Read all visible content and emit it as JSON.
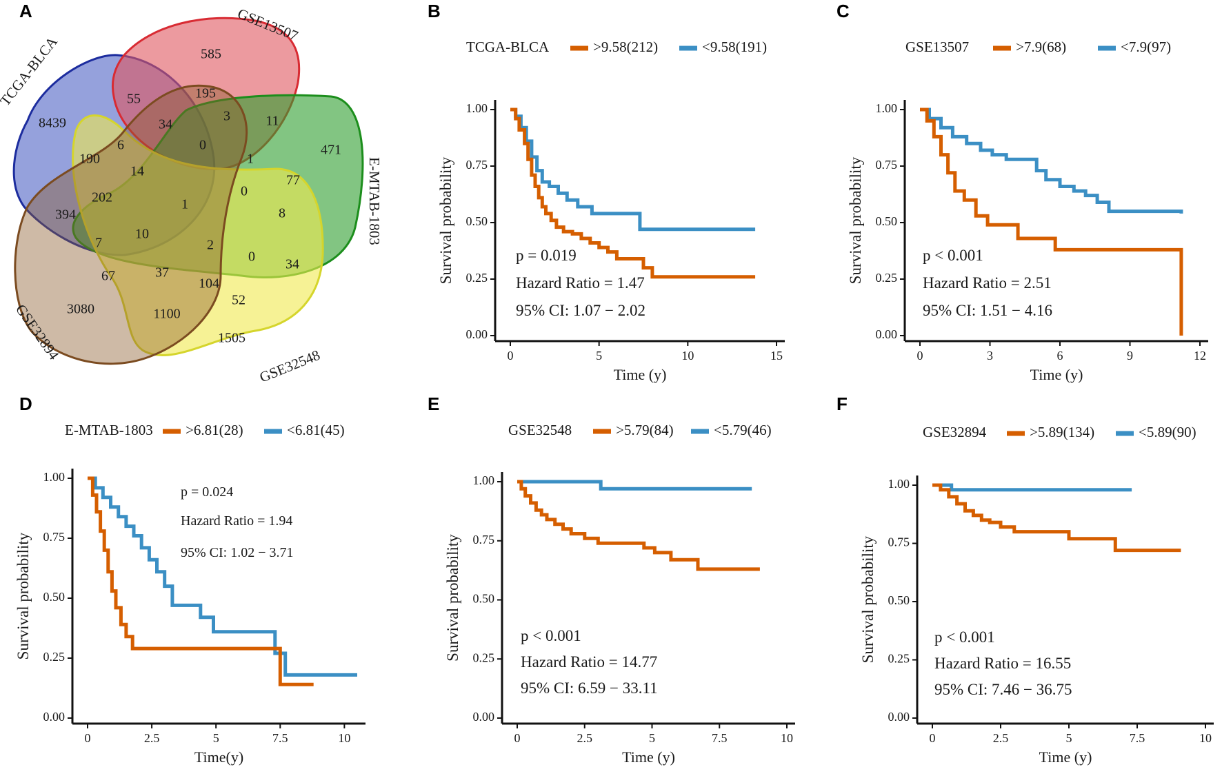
{
  "colors": {
    "high": "#D55E00",
    "low": "#3B8FC4",
    "axis": "#111111"
  },
  "panels": {
    "A": {
      "letter": "A"
    },
    "B": {
      "letter": "B"
    },
    "C": {
      "letter": "C"
    },
    "D": {
      "letter": "D"
    },
    "E": {
      "letter": "E"
    },
    "F": {
      "letter": "F"
    }
  },
  "chart_data": [
    {
      "id": "A",
      "type": "venn",
      "sets": [
        "TCGA-BLCA",
        "GSE13507",
        "E-MTAB-1803",
        "GSE32548",
        "GSE32894"
      ],
      "region_values": [
        "585",
        "8439",
        "55",
        "195",
        "3",
        "11",
        "471",
        "34",
        "6",
        "0",
        "1",
        "190",
        "14",
        "77",
        "0",
        "202",
        "1",
        "8",
        "394",
        "10",
        "2",
        "7",
        "0",
        "34",
        "67",
        "37",
        "104",
        "52",
        "3080",
        "1100",
        "1505"
      ]
    },
    {
      "id": "B",
      "type": "line",
      "series_label": "TCGA-BLCA",
      "legend": [
        ">9.58(212)",
        "<9.58(191)"
      ],
      "xlabel": "Time (y)",
      "ylabel": "Survival probability",
      "xlim": [
        0,
        15
      ],
      "ylim": [
        0,
        1
      ],
      "xticks": [
        "0",
        "5",
        "10",
        "15"
      ],
      "yticks": [
        "0.00",
        "0.25",
        "0.50",
        "0.75",
        "1.00"
      ],
      "stats": [
        "p = 0.019",
        "Hazard Ratio = 1.47",
        "95% CI: 1.07 − 2.02"
      ],
      "series": [
        {
          "name": ">9.58(212)",
          "x": [
            0,
            0.3,
            0.5,
            0.8,
            1.0,
            1.2,
            1.4,
            1.6,
            1.8,
            2.0,
            2.3,
            2.6,
            3.0,
            3.5,
            4.0,
            4.5,
            5.0,
            5.5,
            6.0,
            7.5,
            8.0,
            13.8
          ],
          "y": [
            1.0,
            0.96,
            0.91,
            0.85,
            0.78,
            0.71,
            0.66,
            0.61,
            0.57,
            0.54,
            0.51,
            0.48,
            0.46,
            0.45,
            0.43,
            0.41,
            0.39,
            0.37,
            0.34,
            0.3,
            0.26,
            0.26
          ]
        },
        {
          "name": "<9.58(191)",
          "x": [
            0,
            0.3,
            0.6,
            0.9,
            1.2,
            1.5,
            1.8,
            2.2,
            2.7,
            3.2,
            3.8,
            4.6,
            7.3,
            13.8
          ],
          "y": [
            1.0,
            0.97,
            0.92,
            0.86,
            0.79,
            0.73,
            0.68,
            0.66,
            0.63,
            0.6,
            0.57,
            0.54,
            0.47,
            0.47
          ]
        }
      ]
    },
    {
      "id": "C",
      "type": "line",
      "series_label": "GSE13507",
      "legend": [
        ">7.9(68)",
        "<7.9(97)"
      ],
      "xlabel": "Time (y)",
      "ylabel": "Survival probability",
      "xlim": [
        0,
        12
      ],
      "ylim": [
        0,
        1
      ],
      "xticks": [
        "0",
        "3",
        "6",
        "9",
        "12"
      ],
      "yticks": [
        "0.00",
        "0.25",
        "0.50",
        "0.75",
        "1.00"
      ],
      "stats": [
        "p < 0.001",
        "Hazard Ratio = 2.51",
        "95% CI: 1.51 − 4.16"
      ],
      "series": [
        {
          "name": ">7.9(68)",
          "x": [
            0,
            0.3,
            0.6,
            0.9,
            1.2,
            1.5,
            1.9,
            2.4,
            2.9,
            4.2,
            5.8,
            11.2,
            11.2
          ],
          "y": [
            1.0,
            0.95,
            0.88,
            0.8,
            0.72,
            0.64,
            0.6,
            0.53,
            0.49,
            0.43,
            0.38,
            0.38,
            0.0
          ]
        },
        {
          "name": "<7.9(97)",
          "x": [
            0,
            0.4,
            0.9,
            1.4,
            2.0,
            2.6,
            3.1,
            3.7,
            5.0,
            5.4,
            6.0,
            6.6,
            7.1,
            7.6,
            8.1,
            11.2
          ],
          "y": [
            1.0,
            0.96,
            0.92,
            0.88,
            0.85,
            0.82,
            0.8,
            0.78,
            0.73,
            0.69,
            0.66,
            0.64,
            0.62,
            0.59,
            0.55,
            0.54
          ]
        }
      ]
    },
    {
      "id": "D",
      "type": "line",
      "series_label": "E-MTAB-1803",
      "legend": [
        ">6.81(28)",
        "<6.81(45)"
      ],
      "xlabel": "Time(y)",
      "ylabel": "Survival probability",
      "xlim": [
        0,
        10.5
      ],
      "ylim": [
        0,
        1
      ],
      "xticks": [
        "0",
        "2.5",
        "5",
        "7.5",
        "10"
      ],
      "yticks": [
        "0.00",
        "0.25",
        "0.50",
        "0.75",
        "1.00"
      ],
      "stats": [
        "p = 0.024",
        "Hazard Ratio = 1.94",
        "95% CI: 1.02 − 3.71"
      ],
      "series": [
        {
          "name": ">6.81(28)",
          "x": [
            0,
            0.2,
            0.35,
            0.5,
            0.65,
            0.8,
            0.95,
            1.1,
            1.3,
            1.5,
            1.75,
            7.3,
            7.5,
            8.8
          ],
          "y": [
            1.0,
            0.93,
            0.86,
            0.78,
            0.7,
            0.61,
            0.53,
            0.46,
            0.39,
            0.34,
            0.29,
            0.29,
            0.14,
            0.14
          ]
        },
        {
          "name": "<6.81(45)",
          "x": [
            0,
            0.3,
            0.6,
            0.9,
            1.2,
            1.5,
            1.8,
            2.1,
            2.4,
            2.7,
            3.0,
            3.3,
            4.4,
            4.9,
            7.3,
            7.7,
            10.5
          ],
          "y": [
            1.0,
            0.96,
            0.92,
            0.88,
            0.84,
            0.8,
            0.76,
            0.71,
            0.66,
            0.61,
            0.55,
            0.47,
            0.42,
            0.36,
            0.27,
            0.18,
            0.18
          ]
        }
      ]
    },
    {
      "id": "E",
      "type": "line",
      "series_label": "GSE32548",
      "legend": [
        ">5.79(84)",
        "<5.79(46)"
      ],
      "xlabel": "Time (y)",
      "ylabel": "Survival probability",
      "xlim": [
        0,
        10
      ],
      "ylim": [
        0,
        1
      ],
      "xticks": [
        "0",
        "2.5",
        "5",
        "7.5",
        "10"
      ],
      "yticks": [
        "0.00",
        "0.25",
        "0.50",
        "0.75",
        "1.00"
      ],
      "stats": [
        "p < 0.001",
        "Hazard Ratio = 14.77",
        "95% CI: 6.59 − 33.11"
      ],
      "series": [
        {
          "name": ">5.79(84)",
          "x": [
            0,
            0.15,
            0.3,
            0.5,
            0.7,
            0.9,
            1.1,
            1.4,
            1.7,
            2.0,
            2.5,
            3.0,
            4.7,
            5.1,
            5.7,
            6.7,
            9.0
          ],
          "y": [
            1.0,
            0.97,
            0.94,
            0.91,
            0.88,
            0.86,
            0.84,
            0.82,
            0.8,
            0.78,
            0.76,
            0.74,
            0.72,
            0.7,
            0.67,
            0.63,
            0.63
          ]
        },
        {
          "name": "<5.79(46)",
          "x": [
            0,
            3.1,
            8.7
          ],
          "y": [
            1.0,
            0.97,
            0.97
          ]
        }
      ]
    },
    {
      "id": "F",
      "type": "line",
      "series_label": "GSE32894",
      "legend": [
        ">5.89(134)",
        "<5.89(90)"
      ],
      "xlabel": "Time (y)",
      "ylabel": "Survival probability",
      "xlim": [
        0,
        10
      ],
      "ylim": [
        0,
        1
      ],
      "xticks": [
        "0",
        "2.5",
        "5",
        "7.5",
        "10"
      ],
      "yticks": [
        "0.00",
        "0.25",
        "0.50",
        "0.75",
        "1.00"
      ],
      "stats": [
        "p < 0.001",
        "Hazard Ratio = 16.55",
        "95% CI: 7.46 − 36.75"
      ],
      "series": [
        {
          "name": ">5.89(134)",
          "x": [
            0,
            0.3,
            0.6,
            0.9,
            1.2,
            1.5,
            1.8,
            2.1,
            2.5,
            3.0,
            5.0,
            6.7,
            9.1
          ],
          "y": [
            1.0,
            0.98,
            0.95,
            0.92,
            0.89,
            0.87,
            0.85,
            0.84,
            0.82,
            0.8,
            0.77,
            0.72,
            0.72
          ]
        },
        {
          "name": "<5.89(90)",
          "x": [
            0,
            0.7,
            7.3
          ],
          "y": [
            1.0,
            0.98,
            0.98
          ]
        }
      ]
    }
  ]
}
